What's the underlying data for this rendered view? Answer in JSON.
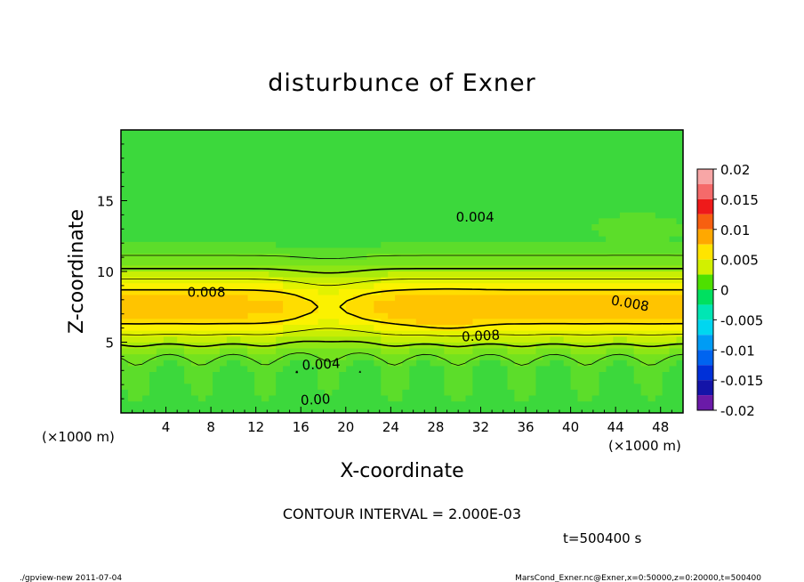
{
  "chart_data": {
    "type": "heatmap",
    "title": "disturbunce of Exner",
    "xlabel": "X-coordinate",
    "ylabel": "Z-coordinate",
    "xunit_left": "(×1000 m)",
    "xunit_right": "(×1000 m)",
    "xlim": [
      0,
      50
    ],
    "ylim": [
      0,
      20
    ],
    "xticks": [
      4,
      8,
      12,
      16,
      20,
      24,
      28,
      32,
      36,
      40,
      44,
      48
    ],
    "yticks": [
      5,
      10,
      15
    ],
    "contour_interval_text": "CONTOUR INTERVAL = 2.000E-03",
    "time_text": "t=500400 s",
    "colorbar": {
      "ticks": [
        "0.02",
        "0.015",
        "0.01",
        "0.005",
        "0",
        "-0.005",
        "-0.01",
        "-0.015",
        "-0.02"
      ],
      "range": [
        -0.02,
        0.02
      ],
      "levels": [
        {
          "from": 0.0175,
          "to": 0.02,
          "color": "#f7a6a6"
        },
        {
          "from": 0.015,
          "to": 0.0175,
          "color": "#f56a6a"
        },
        {
          "from": 0.0125,
          "to": 0.015,
          "color": "#ee1a1a"
        },
        {
          "from": 0.01,
          "to": 0.0125,
          "color": "#f75f10"
        },
        {
          "from": 0.0075,
          "to": 0.01,
          "color": "#ffa800"
        },
        {
          "from": 0.005,
          "to": 0.0075,
          "color": "#ffe400"
        },
        {
          "from": 0.0025,
          "to": 0.005,
          "color": "#d2f000"
        },
        {
          "from": 0.0,
          "to": 0.0025,
          "color": "#4ee000"
        },
        {
          "from": -0.0025,
          "to": 0.0,
          "color": "#00e060"
        },
        {
          "from": -0.005,
          "to": -0.0025,
          "color": "#00e6b4"
        },
        {
          "from": -0.0075,
          "to": -0.005,
          "color": "#00d6f0"
        },
        {
          "from": -0.01,
          "to": -0.0075,
          "color": "#009cf5"
        },
        {
          "from": -0.0125,
          "to": -0.01,
          "color": "#0064f0"
        },
        {
          "from": -0.015,
          "to": -0.0125,
          "color": "#0030d8"
        },
        {
          "from": -0.0175,
          "to": -0.015,
          "color": "#1414a8"
        },
        {
          "from": -0.02,
          "to": -0.0175,
          "color": "#6a1aa8"
        }
      ]
    },
    "field_bands": [
      {
        "level": 0.001,
        "color": "#5cdd2a"
      },
      {
        "level": 0.002,
        "color": "#74e21e"
      },
      {
        "level": 0.003,
        "color": "#8ee614"
      },
      {
        "level": 0.004,
        "color": "#aaea0a"
      },
      {
        "level": 0.005,
        "color": "#c8ee04"
      },
      {
        "level": 0.006,
        "color": "#e2f200"
      },
      {
        "level": 0.007,
        "color": "#fbf200"
      },
      {
        "level": 0.008,
        "color": "#ffdd00"
      },
      {
        "level": 0.009,
        "color": "#ffc400"
      }
    ],
    "background_color": "#3cd83c",
    "contour_labels": [
      {
        "text": "0.004",
        "x": 31.5,
        "z": 13.9,
        "angle": 0
      },
      {
        "text": "0.008",
        "x": 7.6,
        "z": 8.6,
        "angle": 0
      },
      {
        "text": "0.008",
        "x": 45.3,
        "z": 7.8,
        "angle": 10
      },
      {
        "text": "0.008",
        "x": 32.0,
        "z": 5.5,
        "angle": -3
      },
      {
        "text": "0.004",
        "x": 17.8,
        "z": 3.5,
        "angle": -3
      },
      {
        "text": "0.00",
        "x": 17.3,
        "z": 1.0,
        "angle": -3
      }
    ]
  },
  "footer": {
    "left": "./gpview-new   2011-07-04",
    "right": "MarsCond_Exner.nc@Exner,x=0:50000,z=0:20000,t=500400"
  }
}
